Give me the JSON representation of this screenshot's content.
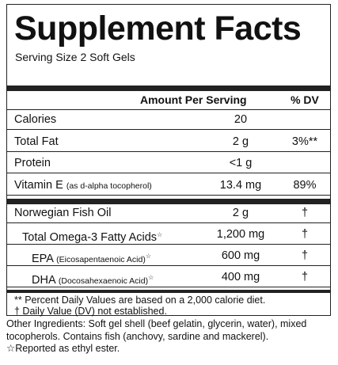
{
  "header": {
    "title": "Supplement Facts",
    "serving_size": "Serving Size 2 Soft Gels"
  },
  "table": {
    "columns": {
      "amount": "Amount Per Serving",
      "dv": "% DV"
    },
    "rows": [
      {
        "name": "Calories",
        "amount": "20"
      },
      {
        "name": "Total Fat",
        "amount": "2 g",
        "dv": "3%**"
      },
      {
        "name": "Protein",
        "amount": "<1 g"
      },
      {
        "name": "Vitamin E",
        "note": "(as d-alpha tocopherol)",
        "amount": "13.4 mg",
        "dv": "89%"
      }
    ],
    "rows_2": [
      {
        "name": "Norwegian Fish Oil",
        "amount": "2 g",
        "dv": "†"
      },
      {
        "name": "Total Omega-3 Fatty Acids",
        "marker": "☆",
        "amount": "1,200 mg",
        "dv": "†"
      },
      {
        "name": "EPA",
        "note": "(Eicosapentaenoic Acid)",
        "marker": "☆",
        "amount": "600 mg",
        "dv": "†"
      },
      {
        "name": "DHA",
        "note": "(Docosahexaenoic Acid)",
        "marker": "☆",
        "amount": "400 mg",
        "dv": "†"
      }
    ],
    "footnotes": [
      "** Percent Daily Values are based on a 2,000 calorie diet.",
      "† Daily Value (DV) not established."
    ]
  },
  "other_ingredients": "Other Ingredients: Soft gel shell (beef gelatin, glycerin, water), mixed tocopherols. Contains fish (anchovy, sardine and mackerel).",
  "ester_note": "☆Reported as ethyl ester."
}
